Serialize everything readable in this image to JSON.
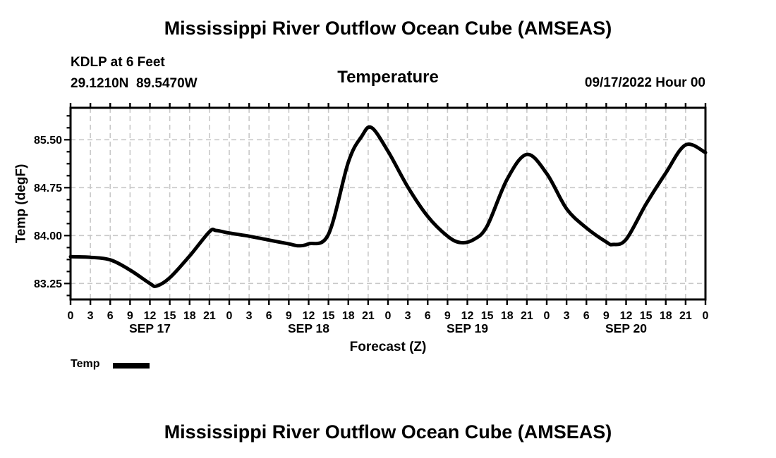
{
  "titles": {
    "top": "Mississippi River Outflow Ocean Cube (AMSEAS)",
    "bottom": "Mississippi River Outflow Ocean Cube (AMSEAS)"
  },
  "header": {
    "station": "KDLP at 6 Feet",
    "coordinates": "29.1210N  89.5470W",
    "panel_title": "Temperature",
    "run_label": "09/17/2022 Hour 00"
  },
  "legend": {
    "label": "Temp",
    "swatch": "thick-black-line"
  },
  "colors": {
    "line": "#000000",
    "grid": "#c8c8c8",
    "frame": "#000000",
    "text": "#000000",
    "background": "#ffffff"
  },
  "chart_data": {
    "type": "line",
    "title": "Temperature",
    "xlabel": "Forecast (Z)",
    "ylabel": "Temp (degF)",
    "grid": "dashed-gray-both-axes",
    "legend_position": "below-left",
    "xlim_hours": [
      0,
      96
    ],
    "ylim": [
      83.0,
      86.0
    ],
    "y_major_ticks": [
      83.25,
      84.0,
      84.75,
      85.5
    ],
    "y_tick_labels": [
      "83.25",
      "84.00",
      "84.75",
      "85.50"
    ],
    "y_minor_step": 0.1875,
    "x_tick_step_hours": 3,
    "x_tick_labels": [
      "0",
      "3",
      "6",
      "9",
      "12",
      "15",
      "18",
      "21",
      "0",
      "3",
      "6",
      "9",
      "12",
      "15",
      "18",
      "21",
      "0",
      "3",
      "6",
      "9",
      "12",
      "15",
      "18",
      "21",
      "0",
      "3",
      "6",
      "9",
      "12",
      "15",
      "18",
      "21",
      "0"
    ],
    "day_labels": [
      {
        "text": "SEP 17",
        "hour": 12
      },
      {
        "text": "SEP 18",
        "hour": 36
      },
      {
        "text": "SEP 19",
        "hour": 60
      },
      {
        "text": "SEP 20",
        "hour": 84
      }
    ],
    "series": [
      {
        "name": "Temp",
        "units": "degF",
        "points": [
          [
            0,
            83.67
          ],
          [
            3,
            83.66
          ],
          [
            6,
            83.62
          ],
          [
            9,
            83.46
          ],
          [
            12,
            83.25
          ],
          [
            13,
            83.21
          ],
          [
            15,
            83.34
          ],
          [
            18,
            83.68
          ],
          [
            21,
            84.06
          ],
          [
            22,
            84.08
          ],
          [
            24,
            84.04
          ],
          [
            27,
            83.99
          ],
          [
            30,
            83.93
          ],
          [
            33,
            83.87
          ],
          [
            34.5,
            83.84
          ],
          [
            36,
            83.87
          ],
          [
            39,
            84.02
          ],
          [
            42,
            85.15
          ],
          [
            44,
            85.55
          ],
          [
            45.5,
            85.69
          ],
          [
            48,
            85.32
          ],
          [
            51,
            84.76
          ],
          [
            54,
            84.3
          ],
          [
            57,
            83.99
          ],
          [
            59,
            83.89
          ],
          [
            61,
            83.94
          ],
          [
            63,
            84.15
          ],
          [
            66,
            84.88
          ],
          [
            69,
            85.27
          ],
          [
            72,
            84.97
          ],
          [
            75,
            84.42
          ],
          [
            78,
            84.12
          ],
          [
            81,
            83.9
          ],
          [
            82,
            83.86
          ],
          [
            84,
            83.94
          ],
          [
            87,
            84.49
          ],
          [
            90,
            84.98
          ],
          [
            93,
            85.42
          ],
          [
            96,
            85.3
          ]
        ]
      }
    ]
  }
}
